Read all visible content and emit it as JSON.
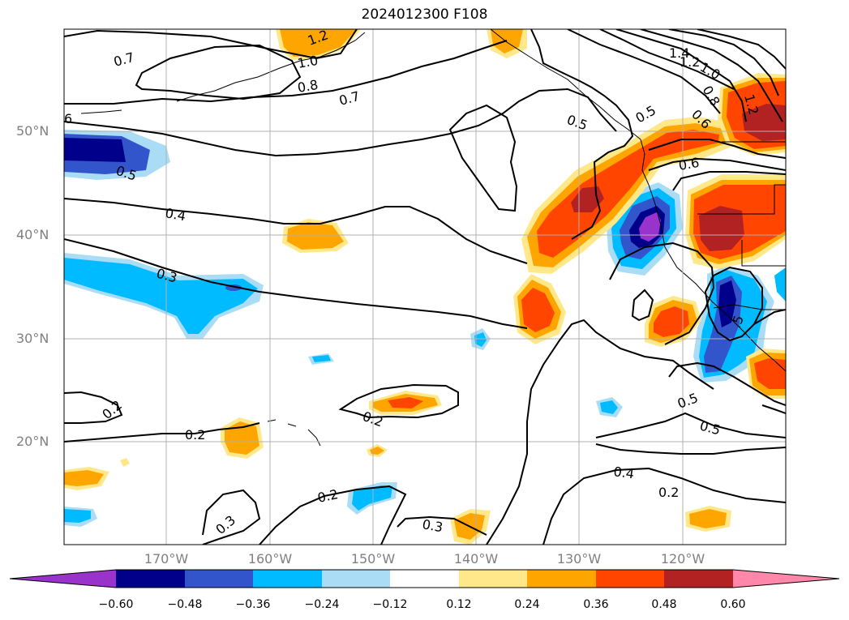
{
  "title": "2024012300 F108",
  "latitude_labels": [
    "50°N",
    "40°N",
    "30°N",
    "20°N"
  ],
  "longitude_labels": [
    "170°W",
    "160°W",
    "150°W",
    "140°W",
    "130°W",
    "120°W"
  ],
  "colorbar": {
    "tick_labels": [
      "−0.60",
      "−0.48",
      "−0.36",
      "−0.24",
      "−0.12",
      "0.12",
      "0.24",
      "0.36",
      "0.48",
      "0.60"
    ],
    "colors": [
      "#9933cc",
      "#00008b",
      "#3355cc",
      "#00bbff",
      "#aaddf5",
      "#ffffff",
      "#ffe88a",
      "#ffa500",
      "#ff4500",
      "#b22222",
      "#ff88aa"
    ]
  },
  "contour_labels": [
    "0.7",
    "0.8",
    "0.7",
    "1.0",
    "1.2",
    "1.4",
    "1.2",
    "1.0",
    "0.8",
    "0.6",
    "1.2",
    "0.5",
    "0.5",
    "0.6",
    "0.5",
    "0.4",
    "0.3",
    "0.2",
    "0.2",
    "0.2",
    "0.2",
    "0.3",
    "0.3",
    "0.5",
    "0.5",
    "0.4",
    "0.2",
    "6",
    ".5"
  ]
}
